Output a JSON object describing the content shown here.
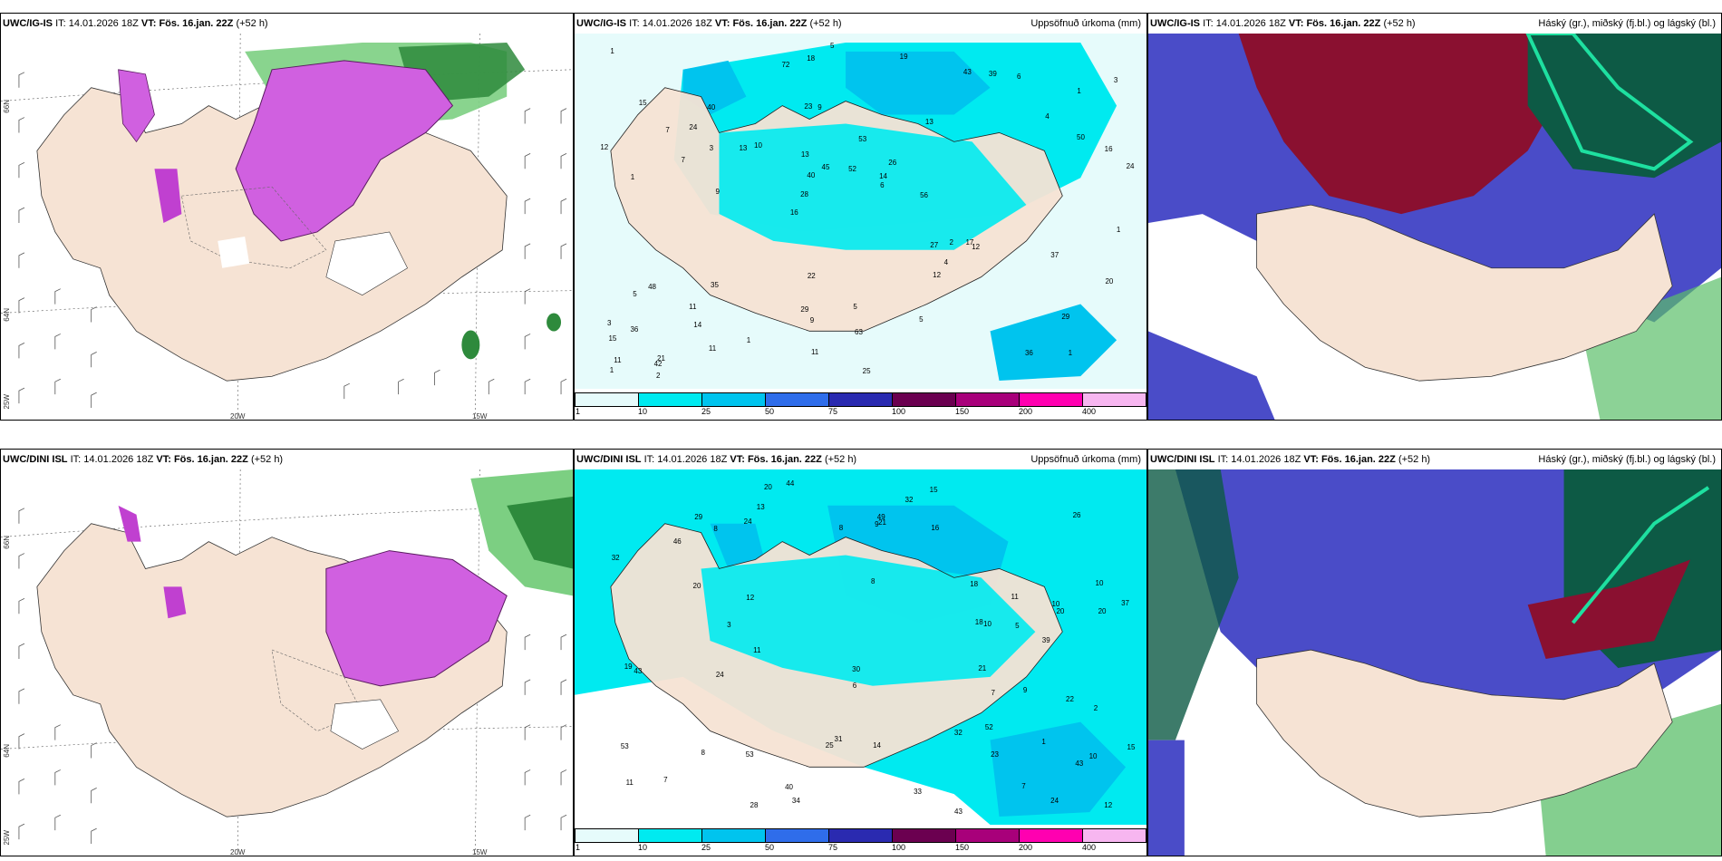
{
  "panels": [
    {
      "id": "p1",
      "model": "UWC/IG-IS",
      "it": "14.01.2026 18Z",
      "vt": "Fös. 16.jan. 22Z",
      "lead": "(+52 h)",
      "right": ""
    },
    {
      "id": "p2",
      "model": "UWC/IG-IS",
      "it": "14.01.2026 18Z",
      "vt": "Fös. 16.jan. 22Z",
      "lead": "(+52 h)",
      "right": "Uppsöfnuð úrkoma (mm)"
    },
    {
      "id": "p3",
      "model": "UWC/IG-IS",
      "it": "14.01.2026 18Z",
      "vt": "Fös. 16.jan. 22Z",
      "lead": "(+52 h)",
      "right": "Háský (gr.), miðský (fj.bl.) og lágský (bl.)"
    },
    {
      "id": "p4",
      "model": "UWC/DINI ISL",
      "it": "14.01.2026 18Z",
      "vt": "Fös. 16.jan. 22Z",
      "lead": "(+52 h)",
      "right": ""
    },
    {
      "id": "p5",
      "model": "UWC/DINI ISL",
      "it": "14.01.2026 18Z",
      "vt": "Fös. 16.jan. 22Z",
      "lead": "(+52 h)",
      "right": "Uppsöfnuð úrkoma (mm)"
    },
    {
      "id": "p6",
      "model": "UWC/DINI ISL",
      "it": "14.01.2026 18Z",
      "vt": "Fös. 16.jan. 22Z",
      "lead": "(+52 h)",
      "right": "Háský (gr.), miðský (fj.bl.) og lágský (bl.)"
    }
  ],
  "labels": {
    "it": "IT:",
    "vt": "VT:"
  },
  "axes": {
    "lon20": "20W",
    "lon15": "15W",
    "lat66": "66N",
    "lat64": "64N",
    "lon25": "25W"
  },
  "colorbar": {
    "ticks": [
      "1",
      "10",
      "25",
      "50",
      "75",
      "100",
      "150",
      "200",
      "400"
    ],
    "colors": [
      "#e6fbfb",
      "#00eaf0",
      "#00c4ee",
      "#2f6dea",
      "#2a2ab0",
      "#6b0050",
      "#a8007a",
      "#ff00b0",
      "#f7b6f0"
    ]
  },
  "precip_numbers_top": [
    "1",
    "1",
    "1",
    "16",
    "13",
    "21",
    "23",
    "53",
    "48",
    "10",
    "15",
    "14",
    "9",
    "26",
    "12",
    "15",
    "18",
    "24",
    "27",
    "50",
    "28",
    "29",
    "40",
    "40",
    "43",
    "35",
    "36",
    "29",
    "17",
    "25",
    "13",
    "7",
    "12",
    "11",
    "16",
    "14",
    "11",
    "9",
    "6",
    "5",
    "4",
    "3",
    "4",
    "5",
    "11",
    "2",
    "1",
    "5",
    "6",
    "5",
    "9",
    "12",
    "24",
    "39",
    "42",
    "19",
    "72",
    "45",
    "20",
    "22",
    "1",
    "2",
    "3",
    "3",
    "1",
    "7",
    "1",
    "13",
    "63",
    "52",
    "36",
    "56",
    "37",
    "11"
  ],
  "precip_numbers_bottom": [
    "1",
    "10",
    "10",
    "8",
    "11",
    "13",
    "10",
    "53",
    "26",
    "20",
    "20",
    "32",
    "39",
    "34",
    "53",
    "46",
    "43",
    "24",
    "31",
    "20",
    "19",
    "43",
    "33",
    "18",
    "40",
    "25",
    "32",
    "16",
    "18",
    "15",
    "24",
    "23",
    "28",
    "30",
    "22",
    "7",
    "10",
    "8",
    "24",
    "11",
    "9",
    "5",
    "9",
    "3",
    "2",
    "7",
    "7",
    "15",
    "12",
    "11",
    "8",
    "6",
    "21",
    "37",
    "32",
    "21",
    "20",
    "29",
    "43",
    "49",
    "44",
    "52",
    "12",
    "14",
    "8"
  ],
  "colors": {
    "land": "#f6e3d4",
    "snow": "#c040d0",
    "green": "#5bbf6a",
    "hi_cloud": "#0d5a45",
    "mid_cloud": "#8a1030",
    "low_cloud": "#4a4cc8"
  }
}
